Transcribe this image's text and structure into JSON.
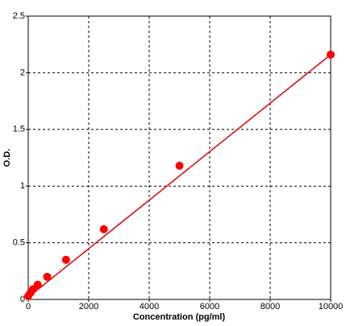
{
  "chart_data": {
    "type": "scatter",
    "x_label": "Concentration (pg/ml)",
    "y_label": "O.D.",
    "x": [
      0,
      78,
      156,
      312,
      625,
      1250,
      2500,
      5000,
      10000
    ],
    "series": [
      {
        "color": "#ff0000",
        "values": [
          0.03,
          0.06,
          0.09,
          0.13,
          0.2,
          0.35,
          0.62,
          1.18,
          2.16
        ]
      }
    ],
    "fit_line": {
      "color": "#e00000",
      "x": [
        0,
        10000
      ],
      "values": [
        0.02,
        2.16
      ]
    },
    "xlim": [
      0,
      10000
    ],
    "xticks": [
      0,
      2000,
      4000,
      6000,
      8000,
      10000
    ],
    "ylim": [
      0,
      2.5
    ],
    "yticks": [
      0,
      0.5,
      1,
      1.5,
      2,
      2.5
    ],
    "grid": true
  }
}
